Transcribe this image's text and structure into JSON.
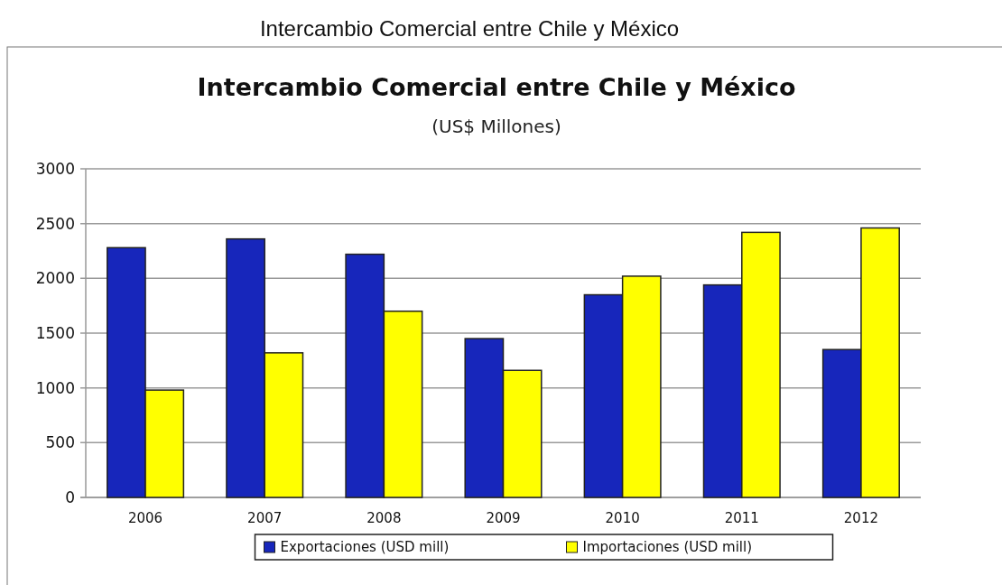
{
  "chart_data": {
    "type": "bar",
    "title": "Intercambio Comercial entre Chile y México",
    "subtitle": "(US$ Millones)",
    "annotations": [
      "Intercambio Comercial entre Chile y México"
    ],
    "categories": [
      "2006",
      "2007",
      "2008",
      "2009",
      "2010",
      "2011",
      "2012"
    ],
    "series": [
      {
        "name": "Exportaciones (USD mill)",
        "color": "#1726bb",
        "values": [
          2280,
          2360,
          2220,
          1450,
          1850,
          1940,
          1350
        ]
      },
      {
        "name": "Importaciones (USD mill)",
        "color": "#ffff00",
        "values": [
          980,
          1320,
          1700,
          1160,
          2020,
          2420,
          2460
        ]
      }
    ],
    "ylim": [
      0,
      3000
    ],
    "yticks": [
      0,
      500,
      1000,
      1500,
      2000,
      2500,
      3000
    ],
    "grid": "y",
    "legend": "bottom"
  }
}
